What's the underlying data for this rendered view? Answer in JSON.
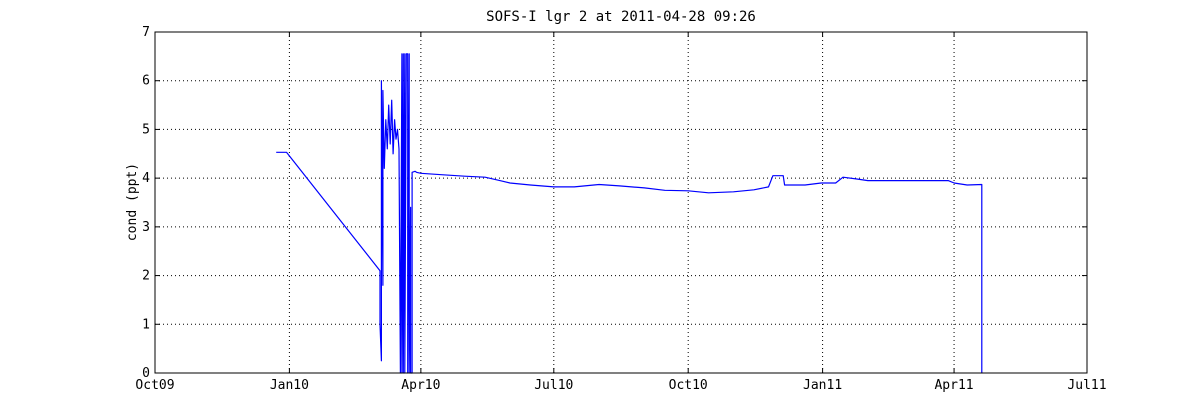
{
  "chart_data": {
    "type": "line",
    "title": "SOFS-I lgr 2 at 2011-04-28 09:26",
    "xlabel": "",
    "ylabel": "cond (ppt)",
    "x_unit": "date",
    "xlim": [
      "2009-10-01",
      "2011-07-01"
    ],
    "ylim": [
      0,
      7
    ],
    "grid": true,
    "line_color": "#0000ff",
    "x_ticks": [
      {
        "date": "2009-10-01",
        "label": "Oct09"
      },
      {
        "date": "2010-01-01",
        "label": "Jan10"
      },
      {
        "date": "2010-04-01",
        "label": "Apr10"
      },
      {
        "date": "2010-07-01",
        "label": "Jul10"
      },
      {
        "date": "2010-10-01",
        "label": "Oct10"
      },
      {
        "date": "2011-01-01",
        "label": "Jan11"
      },
      {
        "date": "2011-04-01",
        "label": "Apr11"
      },
      {
        "date": "2011-07-01",
        "label": "Jul11"
      }
    ],
    "y_ticks": [
      0,
      1,
      2,
      3,
      4,
      5,
      6,
      7
    ],
    "series": [
      {
        "x": [
          "2009-12-23",
          "2009-12-30",
          "2010-03-04",
          "2010-03-04",
          "2010-03-05",
          "2010-03-05",
          "2010-03-06",
          "2010-03-06",
          "2010-03-07",
          "2010-03-08",
          "2010-03-09",
          "2010-03-10",
          "2010-03-11",
          "2010-03-12",
          "2010-03-13",
          "2010-03-14",
          "2010-03-15",
          "2010-03-16",
          "2010-03-17",
          "2010-03-18",
          "2010-03-19",
          "2010-03-19",
          "2010-03-20",
          "2010-03-20",
          "2010-03-21",
          "2010-03-21",
          "2010-03-22",
          "2010-03-23",
          "2010-03-23",
          "2010-03-24",
          "2010-03-24",
          "2010-03-25",
          "2010-03-25",
          "2010-03-26",
          "2010-03-26",
          "2010-03-27",
          "2010-03-28",
          "2010-03-29",
          "2010-04-01",
          "2010-04-15",
          "2010-05-01",
          "2010-05-15",
          "2010-05-25",
          "2010-06-01",
          "2010-06-15",
          "2010-07-01",
          "2010-07-15",
          "2010-08-01",
          "2010-08-15",
          "2010-09-01",
          "2010-09-15",
          "2010-10-01",
          "2010-10-15",
          "2010-11-01",
          "2010-11-15",
          "2010-11-25",
          "2010-11-28",
          "2010-12-05",
          "2010-12-06",
          "2010-12-20",
          "2010-12-31",
          "2011-01-10",
          "2011-01-15",
          "2011-01-25",
          "2011-02-01",
          "2011-02-15",
          "2011-03-01",
          "2011-03-15",
          "2011-03-28",
          "2011-04-01",
          "2011-04-10",
          "2011-04-20",
          "2011-04-20",
          "2011-04-20"
        ],
        "y": [
          4.53,
          4.53,
          2.1,
          1.0,
          0.25,
          6.0,
          1.8,
          5.8,
          4.2,
          5.2,
          4.6,
          5.5,
          4.7,
          5.6,
          4.5,
          5.2,
          4.8,
          5.0,
          4.6,
          0.0,
          6.55,
          0.0,
          6.55,
          0.0,
          6.55,
          0.0,
          6.55,
          6.55,
          0.0,
          6.55,
          0.0,
          3.4,
          0.0,
          0.0,
          4.12,
          4.13,
          4.14,
          4.12,
          4.1,
          4.07,
          4.04,
          4.02,
          3.95,
          3.9,
          3.86,
          3.82,
          3.82,
          3.87,
          3.84,
          3.8,
          3.75,
          3.74,
          3.7,
          3.72,
          3.76,
          3.82,
          4.05,
          4.05,
          3.86,
          3.86,
          3.9,
          3.9,
          4.02,
          3.98,
          3.95,
          3.95,
          3.95,
          3.95,
          3.95,
          3.9,
          3.86,
          3.87,
          3.86,
          0.0
        ]
      }
    ]
  }
}
